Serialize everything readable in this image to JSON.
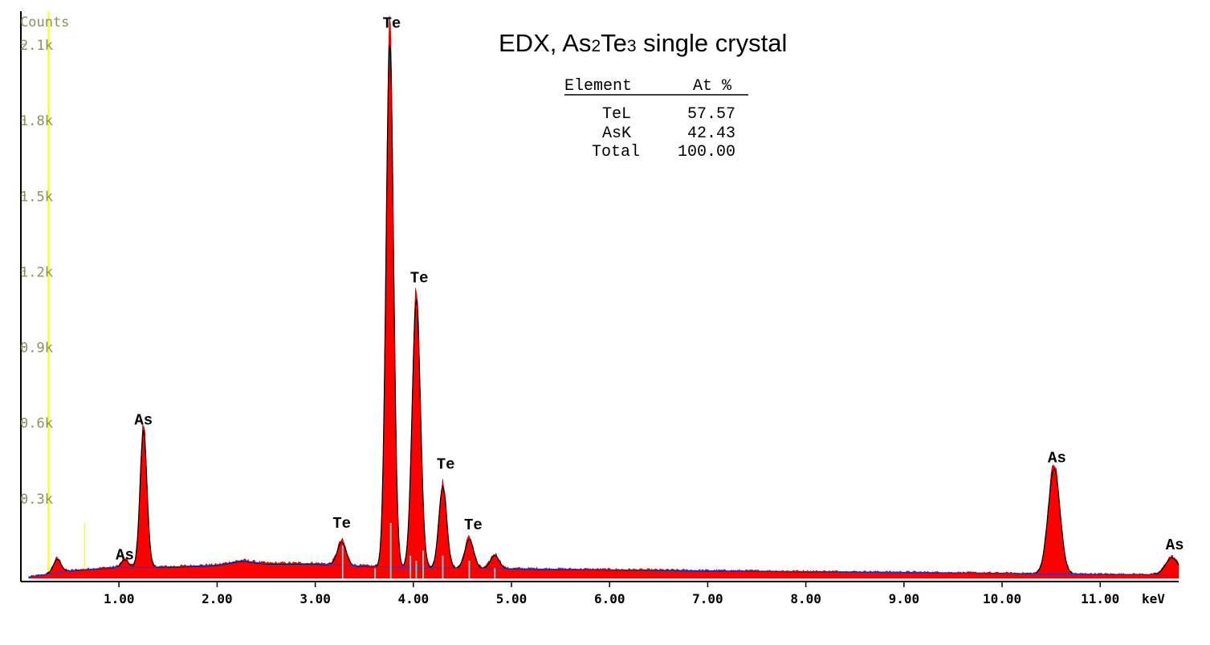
{
  "chart_data": {
    "type": "area",
    "title": {
      "parts": [
        {
          "text": "EDX, As",
          "sub": false
        },
        {
          "text": "2",
          "sub": true
        },
        {
          "text": "Te",
          "sub": false
        },
        {
          "text": "3",
          "sub": true
        },
        {
          "text": " single crystal",
          "sub": false
        }
      ]
    },
    "ylabel": "Counts",
    "xlabel": "keV",
    "xlim": [
      0,
      11.8
    ],
    "ylim": [
      0,
      2250
    ],
    "y_ticks": [
      "0.3k",
      "0.6k",
      "0.9k",
      "1.2k",
      "1.5k",
      "1.8k",
      "2.1k"
    ],
    "y_tick_values": [
      300,
      600,
      900,
      1200,
      1500,
      1800,
      2100
    ],
    "x_ticks": [
      "1.00",
      "2.00",
      "3.00",
      "4.00",
      "5.00",
      "6.00",
      "7.00",
      "8.00",
      "9.00",
      "10.00",
      "11.00"
    ],
    "x_tick_values": [
      1,
      2,
      3,
      4,
      5,
      6,
      7,
      8,
      9,
      10,
      11
    ],
    "series": [
      {
        "kind": "spectrum",
        "color": "#ff0000",
        "fit_color": "#000000",
        "background_color": "#3333cc",
        "background": [
          [
            0.0,
            0
          ],
          [
            0.5,
            30
          ],
          [
            1.0,
            45
          ],
          [
            1.5,
            45
          ],
          [
            2.0,
            52
          ],
          [
            2.25,
            70
          ],
          [
            2.5,
            58
          ],
          [
            3.0,
            58
          ],
          [
            3.5,
            48
          ],
          [
            4.0,
            42
          ],
          [
            5.0,
            38
          ],
          [
            6.0,
            34
          ],
          [
            7.0,
            30
          ],
          [
            8.0,
            27
          ],
          [
            9.0,
            24
          ],
          [
            10.0,
            20
          ],
          [
            11.0,
            16
          ],
          [
            11.8,
            14
          ]
        ],
        "peaks": [
          {
            "x": 0.37,
            "height": 55,
            "width": 0.04
          },
          {
            "x": 1.06,
            "height": 30,
            "width": 0.035
          },
          {
            "x": 1.25,
            "height": 560,
            "width": 0.035
          },
          {
            "x": 3.27,
            "height": 95,
            "width": 0.045
          },
          {
            "x": 3.76,
            "height": 2150,
            "width": 0.038
          },
          {
            "x": 4.03,
            "height": 1100,
            "width": 0.042
          },
          {
            "x": 4.3,
            "height": 335,
            "width": 0.04
          },
          {
            "x": 4.57,
            "height": 120,
            "width": 0.045
          },
          {
            "x": 4.83,
            "height": 55,
            "width": 0.045
          },
          {
            "x": 10.53,
            "height": 430,
            "width": 0.06
          },
          {
            "x": 11.73,
            "height": 70,
            "width": 0.065
          }
        ]
      }
    ],
    "markers": [
      {
        "x": 0.28,
        "color": "#ffff00",
        "full_height": true
      },
      {
        "x": 0.65,
        "color": "#ffff00",
        "height": 220
      }
    ],
    "line_markers": {
      "color": "#66cccc",
      "items": [
        {
          "x": 3.28,
          "height": 130
        },
        {
          "x": 3.61,
          "height": 40
        },
        {
          "x": 3.77,
          "height": 220
        },
        {
          "x": 3.97,
          "height": 90
        },
        {
          "x": 4.03,
          "height": 70
        },
        {
          "x": 4.1,
          "height": 110
        },
        {
          "x": 4.3,
          "height": 90
        },
        {
          "x": 4.57,
          "height": 70
        },
        {
          "x": 4.83,
          "height": 40
        }
      ]
    },
    "peak_labels": [
      {
        "text": "As",
        "x": 1.25,
        "y": 610
      },
      {
        "text": "As",
        "x": 1.06,
        "y": 75
      },
      {
        "text": "Te",
        "x": 3.27,
        "y": 200
      },
      {
        "text": "Te",
        "x": 3.78,
        "y": 2185
      },
      {
        "text": "Te",
        "x": 4.06,
        "y": 1175
      },
      {
        "text": "Te",
        "x": 4.33,
        "y": 435
      },
      {
        "text": "Te",
        "x": 4.61,
        "y": 195
      },
      {
        "text": "As",
        "x": 10.56,
        "y": 460
      },
      {
        "text": "As",
        "x": 11.76,
        "y": 115
      }
    ],
    "table": {
      "headers": [
        "Element",
        "At %"
      ],
      "rows": [
        [
          "TeL",
          "57.57"
        ],
        [
          "AsK",
          "42.43"
        ],
        [
          "Total",
          "100.00"
        ]
      ]
    }
  }
}
